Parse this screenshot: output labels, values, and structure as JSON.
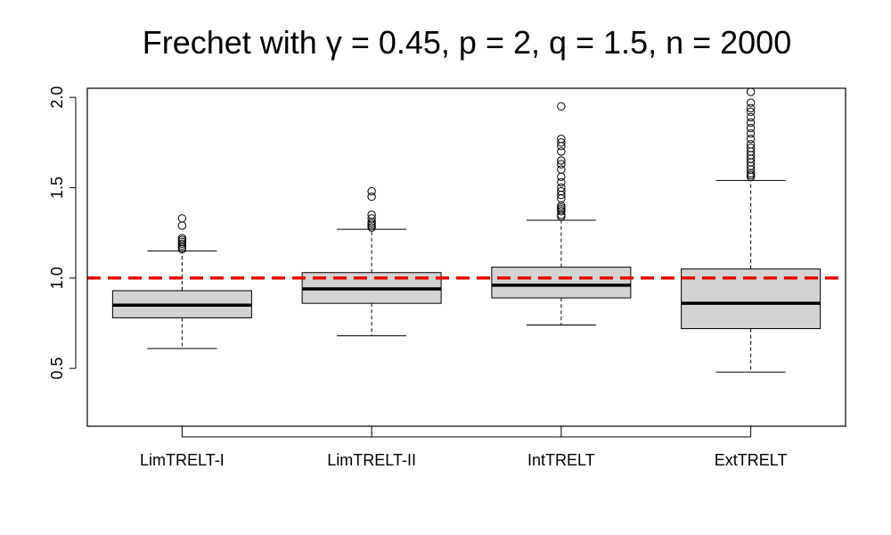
{
  "chart_data": {
    "type": "boxplot",
    "title": "Frechet with γ = 0.45, p = 2, q = 1.5, n = 2000",
    "xlabel": "",
    "ylabel": "",
    "ylim": [
      0.18,
      2.05
    ],
    "yticks": [
      0.5,
      1.0,
      1.5,
      2.0
    ],
    "ytick_labels": [
      "0.5",
      "1.0",
      "1.5",
      "2.0"
    ],
    "reference_line": {
      "y": 1.0,
      "color": "#ee0000",
      "style": "dashed"
    },
    "box_fill": "#d3d3d3",
    "categories": [
      "LimTRELT-I",
      "LimTRELT-II",
      "IntTRELT",
      "ExtTRELT"
    ],
    "boxes": [
      {
        "name": "LimTRELT-I",
        "whisker_low": 0.61,
        "q1": 0.78,
        "median": 0.85,
        "q3": 0.93,
        "whisker_high": 1.15,
        "outliers": [
          1.16,
          1.17,
          1.18,
          1.19,
          1.2,
          1.21,
          1.22,
          1.29,
          1.33
        ]
      },
      {
        "name": "LimTRELT-II",
        "whisker_low": 0.68,
        "q1": 0.86,
        "median": 0.94,
        "q3": 1.03,
        "whisker_high": 1.27,
        "outliers": [
          1.28,
          1.29,
          1.3,
          1.31,
          1.33,
          1.35,
          1.45,
          1.48
        ]
      },
      {
        "name": "IntTRELT",
        "whisker_low": 0.74,
        "q1": 0.89,
        "median": 0.96,
        "q3": 1.06,
        "whisker_high": 1.32,
        "outliers": [
          1.34,
          1.35,
          1.37,
          1.38,
          1.39,
          1.4,
          1.44,
          1.46,
          1.48,
          1.5,
          1.53,
          1.56,
          1.6,
          1.63,
          1.65,
          1.7,
          1.73,
          1.75,
          1.77,
          1.95
        ]
      },
      {
        "name": "ExtTRELT",
        "whisker_low": 0.48,
        "q1": 0.72,
        "median": 0.86,
        "q3": 1.05,
        "whisker_high": 1.54,
        "outliers": [
          1.56,
          1.57,
          1.58,
          1.6,
          1.62,
          1.64,
          1.66,
          1.68,
          1.7,
          1.72,
          1.74,
          1.77,
          1.8,
          1.83,
          1.86,
          1.89,
          1.92,
          1.94,
          1.97,
          2.03
        ]
      }
    ]
  }
}
